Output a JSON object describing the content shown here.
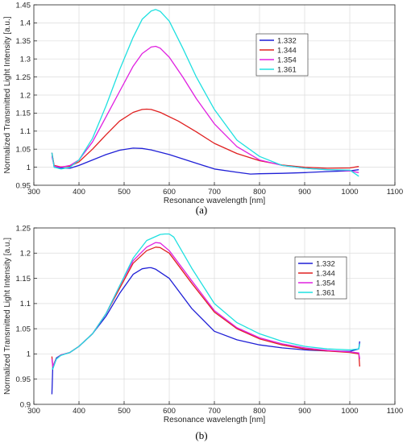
{
  "chart_data": [
    {
      "type": "line",
      "panel": "(a)",
      "xlabel": "Resonance wavelength [nm]",
      "ylabel": "Normalized Transmitted Light Intensity [a.u.]",
      "xlim": [
        300,
        1100
      ],
      "ylim": [
        0.95,
        1.45
      ],
      "xticks": [
        300,
        400,
        500,
        600,
        700,
        800,
        900,
        1000,
        1100
      ],
      "yticks": [
        0.95,
        1,
        1.05,
        1.1,
        1.15,
        1.2,
        1.25,
        1.3,
        1.35,
        1.4,
        1.45
      ],
      "ytick_labels": [
        "0.95",
        "1",
        "1.05",
        "1.1",
        "1.15",
        "1.2",
        "1.25",
        "1.3",
        "1.35",
        "1.4",
        "1.45"
      ],
      "grid": true,
      "legend_position": "top-right",
      "series": [
        {
          "name": "1.332",
          "color": "#1f1fd6",
          "x": [
            340,
            345,
            360,
            380,
            400,
            430,
            460,
            490,
            520,
            540,
            560,
            600,
            650,
            700,
            750,
            780,
            800,
            850,
            900,
            950,
            1000,
            1020
          ],
          "y": [
            1.04,
            1.0,
            0.998,
            0.997,
            1.005,
            1.02,
            1.035,
            1.047,
            1.053,
            1.052,
            1.048,
            1.035,
            1.015,
            0.995,
            0.986,
            0.981,
            0.982,
            0.983,
            0.985,
            0.988,
            0.99,
            0.993
          ]
        },
        {
          "name": "1.344",
          "color": "#e02020",
          "x": [
            340,
            345,
            360,
            380,
            400,
            430,
            460,
            490,
            520,
            540,
            550,
            560,
            580,
            620,
            660,
            700,
            750,
            800,
            850,
            900,
            950,
            1000,
            1020
          ],
          "y": [
            1.04,
            1.005,
            1.001,
            1.003,
            1.015,
            1.05,
            1.09,
            1.128,
            1.152,
            1.16,
            1.161,
            1.16,
            1.152,
            1.128,
            1.098,
            1.066,
            1.038,
            1.018,
            1.006,
            1.0,
            0.997,
            0.998,
            1.002
          ]
        },
        {
          "name": "1.354",
          "color": "#e020e0",
          "x": [
            340,
            345,
            360,
            380,
            400,
            430,
            460,
            490,
            520,
            540,
            560,
            570,
            580,
            600,
            630,
            660,
            700,
            750,
            800,
            850,
            900,
            950,
            1000,
            1020
          ],
          "y": [
            1.03,
            1.003,
            1.0,
            1.005,
            1.02,
            1.07,
            1.14,
            1.21,
            1.28,
            1.315,
            1.333,
            1.335,
            1.33,
            1.305,
            1.25,
            1.19,
            1.12,
            1.057,
            1.02,
            1.005,
            0.997,
            0.993,
            0.99,
            0.985
          ]
        },
        {
          "name": "1.361",
          "color": "#1fe0e0",
          "x": [
            340,
            345,
            360,
            380,
            400,
            430,
            460,
            490,
            520,
            540,
            560,
            570,
            580,
            600,
            630,
            660,
            700,
            750,
            800,
            850,
            900,
            950,
            1000,
            1020
          ],
          "y": [
            1.04,
            1.0,
            0.995,
            1.0,
            1.02,
            1.08,
            1.17,
            1.27,
            1.36,
            1.41,
            1.433,
            1.437,
            1.432,
            1.405,
            1.33,
            1.25,
            1.16,
            1.075,
            1.03,
            1.005,
            0.997,
            0.993,
            0.992,
            0.975
          ]
        }
      ]
    },
    {
      "type": "line",
      "panel": "(b)",
      "xlabel": "Resonance wavelength [nm]",
      "ylabel": "Normalized Transmitted Light Intensity [a.u.]",
      "xlim": [
        300,
        1100
      ],
      "ylim": [
        0.9,
        1.25
      ],
      "xticks": [
        300,
        400,
        500,
        600,
        700,
        800,
        900,
        1000,
        1100
      ],
      "yticks": [
        0.9,
        0.95,
        1,
        1.05,
        1.1,
        1.15,
        1.2,
        1.25
      ],
      "ytick_labels": [
        "0.9",
        "0.95",
        "1",
        "1.05",
        "1.1",
        "1.15",
        "1.2",
        "1.25"
      ],
      "grid": true,
      "legend_position": "top-right",
      "series": [
        {
          "name": "1.332",
          "color": "#1f1fd6",
          "x": [
            340,
            342,
            350,
            360,
            380,
            400,
            430,
            460,
            490,
            520,
            540,
            555,
            560,
            570,
            600,
            650,
            700,
            750,
            800,
            850,
            900,
            950,
            1000,
            1020,
            1022
          ],
          "y": [
            0.92,
            0.975,
            0.992,
            0.998,
            1.003,
            1.015,
            1.04,
            1.075,
            1.12,
            1.158,
            1.169,
            1.171,
            1.171,
            1.168,
            1.15,
            1.09,
            1.045,
            1.028,
            1.018,
            1.012,
            1.008,
            1.006,
            1.005,
            1.01,
            1.025
          ]
        },
        {
          "name": "1.344",
          "color": "#e02020",
          "x": [
            340,
            342,
            350,
            360,
            380,
            400,
            430,
            460,
            490,
            520,
            550,
            570,
            580,
            600,
            650,
            700,
            750,
            800,
            850,
            900,
            950,
            1000,
            1020,
            1022
          ],
          "y": [
            0.995,
            0.975,
            0.99,
            0.998,
            1.003,
            1.015,
            1.04,
            1.08,
            1.13,
            1.18,
            1.205,
            1.212,
            1.211,
            1.2,
            1.14,
            1.083,
            1.05,
            1.03,
            1.018,
            1.01,
            1.006,
            1.003,
            1.0,
            0.975
          ]
        },
        {
          "name": "1.354",
          "color": "#e020e0",
          "x": [
            340,
            342,
            350,
            360,
            380,
            400,
            430,
            460,
            490,
            520,
            550,
            570,
            580,
            600,
            650,
            700,
            750,
            800,
            850,
            900,
            950,
            1000,
            1020,
            1022
          ],
          "y": [
            0.99,
            0.975,
            0.99,
            0.998,
            1.003,
            1.015,
            1.04,
            1.08,
            1.135,
            1.185,
            1.212,
            1.221,
            1.22,
            1.205,
            1.145,
            1.086,
            1.052,
            1.032,
            1.02,
            1.012,
            1.007,
            1.004,
            1.002,
            0.99
          ]
        },
        {
          "name": "1.361",
          "color": "#1fe0e0",
          "x": [
            340,
            342,
            350,
            360,
            380,
            400,
            430,
            460,
            490,
            520,
            550,
            580,
            590,
            600,
            610,
            650,
            700,
            750,
            800,
            850,
            900,
            950,
            1000,
            1020,
            1022
          ],
          "y": [
            0.97,
            0.97,
            0.99,
            0.997,
            1.003,
            1.015,
            1.04,
            1.08,
            1.135,
            1.19,
            1.225,
            1.237,
            1.238,
            1.238,
            1.232,
            1.17,
            1.1,
            1.062,
            1.04,
            1.025,
            1.015,
            1.01,
            1.008,
            1.01,
            1.02
          ]
        }
      ]
    }
  ],
  "captions": [
    "(a)",
    "(b)"
  ]
}
